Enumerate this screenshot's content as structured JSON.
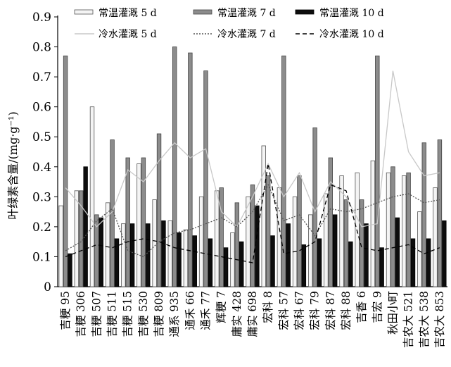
{
  "chart_data": {
    "type": "bar",
    "ylabel": "叶绿素含量/(mg·g⁻¹)",
    "ylim": [
      0,
      0.9
    ],
    "yticks": [
      "0",
      "0.1",
      "0.2",
      "0.3",
      "0.4",
      "0.5",
      "0.6",
      "0.7",
      "0.8",
      "0.9"
    ],
    "categories": [
      "吉粳 95",
      "吉粳 306",
      "吉粳 507",
      "吉粳 511",
      "吉粳 515",
      "吉粳 530",
      "吉粳 809",
      "通系 935",
      "通禾 66",
      "通禾 77",
      "辉粳 7",
      "庸实 428",
      "庸实 698",
      "宏科 8",
      "宏科 57",
      "宏科 67",
      "宏科 79",
      "宏科 87",
      "宏科 88",
      "吉香 6",
      "吉宏 9",
      "秋田小町",
      "吉农大 521",
      "吉农大 538",
      "吉农大 853"
    ],
    "series": [
      {
        "name": "常温灌溉 5 d",
        "kind": "bar",
        "color": "#f4f4f4",
        "edge": "#555555",
        "values": [
          0.27,
          0.32,
          0.6,
          0.28,
          0.21,
          0.41,
          0.29,
          0.22,
          0.19,
          0.3,
          0.32,
          0.18,
          0.3,
          0.47,
          0.33,
          0.3,
          0.24,
          0.31,
          0.37,
          0.38,
          0.42,
          0.38,
          0.37,
          0.25,
          0.33
        ]
      },
      {
        "name": "常温灌溉 7 d",
        "kind": "bar",
        "color": "#8c8c8c",
        "edge": "#444444",
        "values": [
          0.77,
          0.32,
          0.24,
          0.49,
          0.43,
          0.43,
          0.51,
          0.8,
          0.78,
          0.72,
          0.33,
          0.28,
          0.34,
          0.37,
          0.77,
          0.37,
          0.53,
          0.43,
          0.29,
          0.29,
          0.77,
          0.4,
          0.38,
          0.48,
          0.49
        ]
      },
      {
        "name": "常温灌溉 10 d",
        "kind": "bar",
        "color": "#0d0d0d",
        "edge": "#000000",
        "values": [
          0.11,
          0.4,
          0.23,
          0.16,
          0.21,
          0.21,
          0.22,
          0.18,
          0.17,
          0.16,
          0.13,
          0.15,
          0.27,
          0.17,
          0.21,
          0.14,
          0.16,
          0.24,
          0.15,
          0.21,
          0.13,
          0.23,
          0.16,
          0.16,
          0.22
        ]
      },
      {
        "name": "冷水灌溉 5 d",
        "kind": "line",
        "color": "#c8c8c8",
        "dash": "",
        "values": [
          0.33,
          0.27,
          0.2,
          0.25,
          0.39,
          0.35,
          0.42,
          0.48,
          0.43,
          0.46,
          0.25,
          0.2,
          0.3,
          0.41,
          0.3,
          0.38,
          0.25,
          0.35,
          0.3,
          0.2,
          0.21,
          0.72,
          0.45,
          0.37,
          0.38
        ]
      },
      {
        "name": "冷水灌溉 7 d",
        "kind": "line",
        "color": "#555555",
        "dash": "2 2",
        "values": [
          0.12,
          0.15,
          0.22,
          0.26,
          0.12,
          0.1,
          0.15,
          0.18,
          0.19,
          0.21,
          0.23,
          0.2,
          0.25,
          0.34,
          0.22,
          0.24,
          0.17,
          0.26,
          0.25,
          0.26,
          0.28,
          0.3,
          0.31,
          0.28,
          0.29
        ]
      },
      {
        "name": "冷水灌溉 10 d",
        "kind": "line",
        "color": "#000000",
        "dash": "6 4",
        "values": [
          0.1,
          0.12,
          0.14,
          0.13,
          0.15,
          0.16,
          0.15,
          0.13,
          0.12,
          0.11,
          0.1,
          0.09,
          0.08,
          0.41,
          0.11,
          0.12,
          0.15,
          0.34,
          0.32,
          0.13,
          0.12,
          0.13,
          0.14,
          0.11,
          0.13
        ]
      }
    ],
    "legend_position": "top",
    "grid": false
  }
}
